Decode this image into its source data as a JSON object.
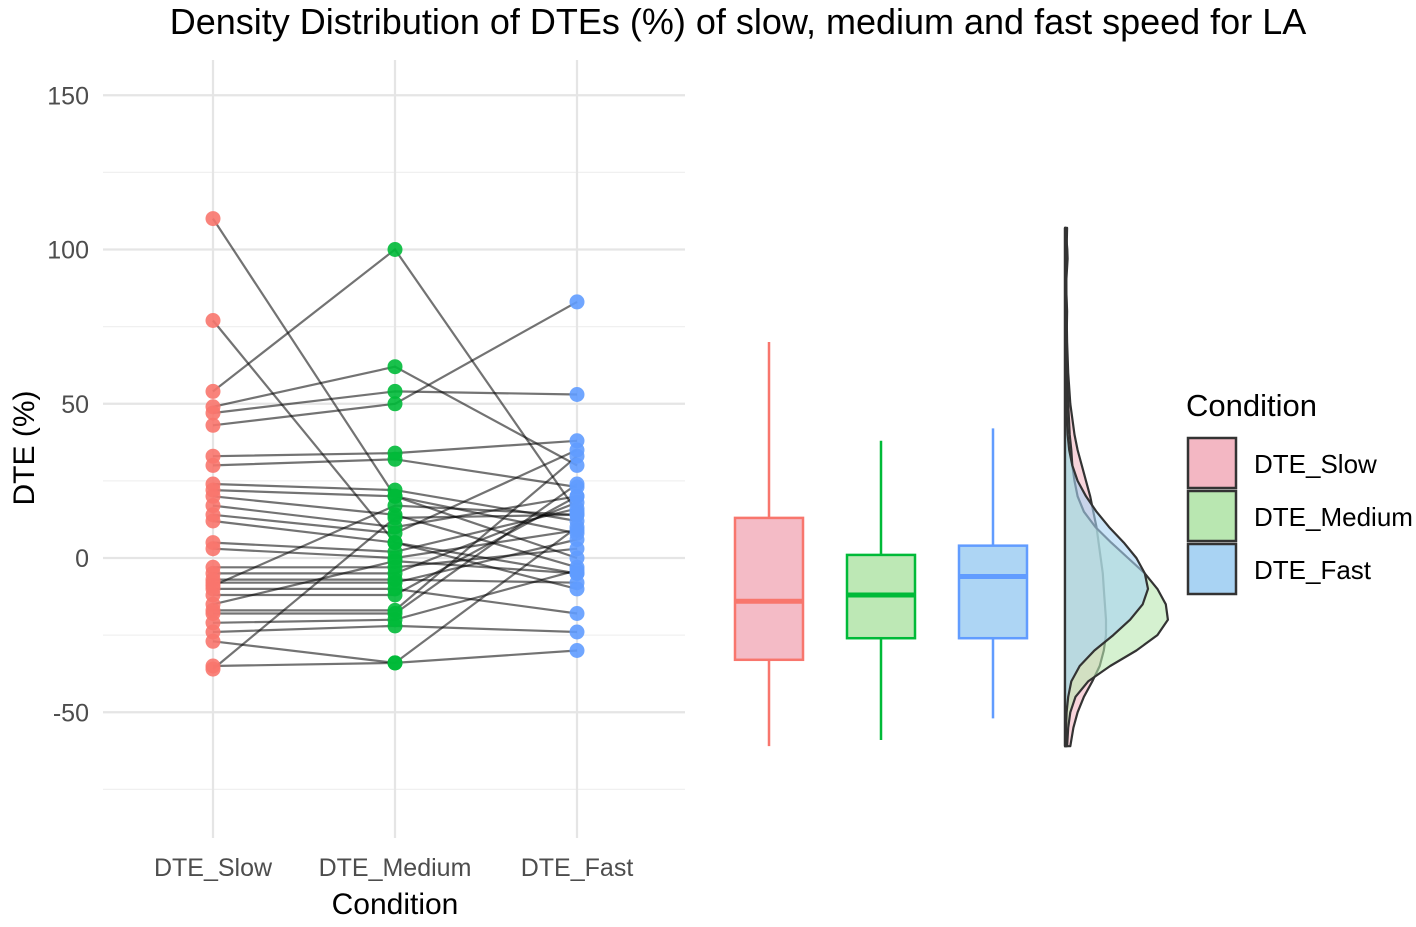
{
  "chart_data": {
    "type": "scatter",
    "title": "Density Distribution of DTEs (%) of slow, medium and fast speed for LA",
    "xlabel": "Condition",
    "ylabel": "DTE (%)",
    "ylim": [
      -75,
      155
    ],
    "yticks": [
      -50,
      0,
      50,
      100,
      150
    ],
    "categories": [
      "DTE_Slow",
      "DTE_Medium",
      "DTE_Fast"
    ],
    "grid": true,
    "colors": {
      "DTE_Slow": "#F8766D",
      "DTE_Medium": "#00BA38",
      "DTE_Fast": "#619CFF"
    },
    "fill_colors": {
      "DTE_Slow": "#F3B7C3",
      "DTE_Medium": "#B9E7B1",
      "DTE_Fast": "#A9D3F3"
    },
    "subjects": [
      [
        110,
        20,
        8
      ],
      [
        77,
        5,
        -5
      ],
      [
        54,
        100,
        15
      ],
      [
        49,
        62,
        30
      ],
      [
        47,
        54,
        53
      ],
      [
        43,
        50,
        83
      ],
      [
        33,
        34,
        38
      ],
      [
        30,
        32,
        23
      ],
      [
        24,
        22,
        12
      ],
      [
        22,
        20,
        0
      ],
      [
        20,
        14,
        -3
      ],
      [
        17,
        10,
        20
      ],
      [
        14,
        8,
        35
      ],
      [
        12,
        5,
        -10
      ],
      [
        5,
        2,
        16
      ],
      [
        3,
        0,
        9
      ],
      [
        -3,
        -3,
        3
      ],
      [
        -5,
        -5,
        18
      ],
      [
        -7,
        -7,
        -8
      ],
      [
        -8,
        -8,
        6
      ],
      [
        -9,
        17,
        14
      ],
      [
        -10,
        -10,
        -18
      ],
      [
        -12,
        -12,
        20
      ],
      [
        -15,
        -1,
        -5
      ],
      [
        -17,
        -17,
        33
      ],
      [
        -18,
        -18,
        24
      ],
      [
        -21,
        -20,
        -4
      ],
      [
        -24,
        -22,
        -24
      ],
      [
        -27,
        -34,
        10
      ],
      [
        -35,
        -34,
        -30
      ],
      [
        -36,
        13,
        14
      ]
    ],
    "boxplots": [
      {
        "name": "DTE_Slow",
        "min": -61,
        "q1": -33,
        "median": -14,
        "q3": 13,
        "max": 70
      },
      {
        "name": "DTE_Medium",
        "min": -59,
        "q1": -26,
        "median": -12,
        "q3": 1,
        "max": 38
      },
      {
        "name": "DTE_Fast",
        "min": -52,
        "q1": -26,
        "median": -6,
        "q3": 4,
        "max": 42
      }
    ],
    "density": {
      "y": [
        -61,
        -55,
        -50,
        -45,
        -40,
        -35,
        -30,
        -25,
        -20,
        -15,
        -10,
        -5,
        0,
        5,
        10,
        15,
        20,
        25,
        30,
        35,
        40,
        50,
        60,
        70,
        80,
        90,
        97,
        100,
        107
      ],
      "series": [
        {
          "name": "DTE_Slow",
          "values": [
            0.5,
            0.8,
            1.2,
            1.8,
            2.6,
            3.3,
            3.7,
            3.9,
            3.9,
            3.8,
            3.7,
            3.6,
            3.4,
            3.2,
            3.0,
            2.7,
            2.4,
            2.0,
            1.6,
            1.2,
            0.9,
            0.5,
            0.3,
            0.2,
            0.15,
            0.12,
            0.12,
            0.15,
            0.2
          ]
        },
        {
          "name": "DTE_Medium",
          "values": [
            0.2,
            0.3,
            0.5,
            1.0,
            2.2,
            4.3,
            6.8,
            8.8,
            9.8,
            9.6,
            8.8,
            7.6,
            6.0,
            4.4,
            2.9,
            1.8,
            1.2,
            0.9,
            0.7,
            0.6,
            0.45,
            0.3,
            0.18,
            0.12,
            0.1,
            0.12,
            0.25,
            0.22,
            0.05
          ]
        },
        {
          "name": "DTE_Fast",
          "values": [
            0.1,
            0.1,
            0.15,
            0.3,
            0.6,
            1.4,
            2.8,
            4.6,
            6.2,
            7.4,
            7.9,
            7.6,
            6.8,
            5.6,
            4.2,
            3.0,
            2.0,
            1.2,
            0.7,
            0.4,
            0.25,
            0.12,
            0.1,
            0.15,
            0.2,
            0.08,
            0.05,
            0.04,
            0.03
          ]
        }
      ]
    },
    "legend": {
      "title": "Condition",
      "position": "right",
      "entries": [
        "DTE_Slow",
        "DTE_Medium",
        "DTE_Fast"
      ]
    }
  }
}
